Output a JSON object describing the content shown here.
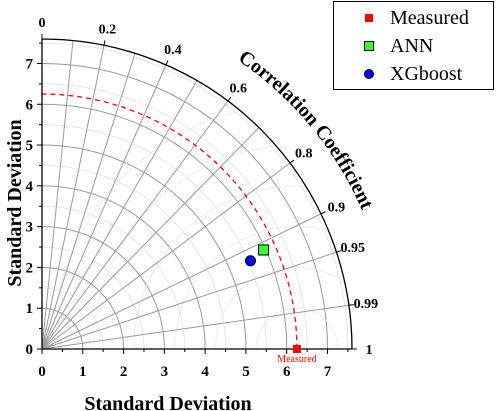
{
  "chart_data": {
    "type": "taylor",
    "xlabel": "Standard Deviation",
    "ylabel": "Standard Deviation",
    "arc_label": "Correlation Coefficient",
    "std_ticks": [
      "0",
      "1",
      "2",
      "3",
      "4",
      "5",
      "6",
      "7"
    ],
    "std_max": 7.6,
    "corr_ticks": [
      "0",
      "0.2",
      "0.4",
      "0.6",
      "0.8",
      "0.9",
      "0.95",
      "0.99",
      "1"
    ],
    "corr_values": [
      0,
      0.2,
      0.4,
      0.6,
      0.8,
      0.9,
      0.95,
      0.99,
      1
    ],
    "reference": {
      "name": "Measured",
      "label": "Measured",
      "std": 6.25,
      "color": "#ff0000"
    },
    "points": [
      {
        "name": "ANN",
        "std": 5.95,
        "corr": 0.913,
        "marker": "square",
        "color": "#33ff33"
      },
      {
        "name": "XGboost",
        "std": 5.55,
        "corr": 0.921,
        "marker": "circle",
        "color": "#0000ff"
      }
    ]
  },
  "legend": {
    "items": [
      {
        "label": "Measured",
        "color": "#ff0000",
        "marker": "square-small"
      },
      {
        "label": "ANN",
        "color": "#33ff33",
        "marker": "square"
      },
      {
        "label": "XGboost",
        "color": "#0000ff",
        "marker": "circle"
      }
    ]
  }
}
